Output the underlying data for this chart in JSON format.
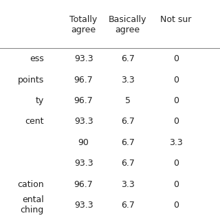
{
  "col_headers": [
    "Totally\nagree",
    "Basically\nagree",
    "Not sur"
  ],
  "row_labels": [
    "ess",
    "points",
    "ty",
    "cent",
    "",
    "",
    "cation",
    "ental\nching"
  ],
  "values": [
    [
      "93.3",
      "6.7",
      "0"
    ],
    [
      "96.7",
      "3.3",
      "0"
    ],
    [
      "96.7",
      "5",
      "0"
    ],
    [
      "93.3",
      "6.7",
      "0"
    ],
    [
      "90",
      "6.7",
      "3.3"
    ],
    [
      "93.3",
      "6.7",
      "0"
    ],
    [
      "96.7",
      "3.3",
      "0"
    ],
    [
      "93.3",
      "6.7",
      "0"
    ]
  ],
  "background_color": "#ffffff",
  "header_line_color": "#888888",
  "text_color": "#222222",
  "font_size": 9,
  "header_font_size": 9
}
